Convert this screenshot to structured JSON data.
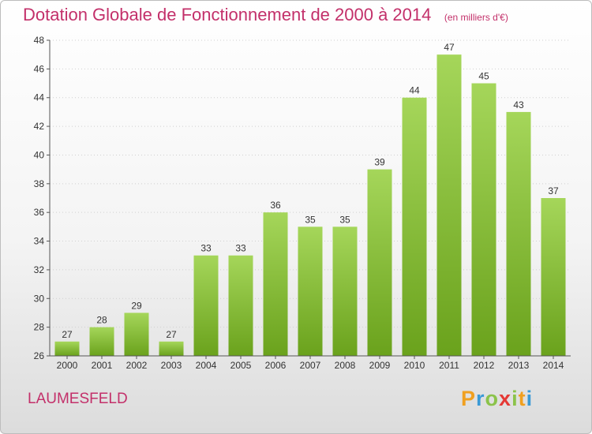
{
  "title": "Dotation Globale de Fonctionnement de 2000 à 2014",
  "subtitle": "(en milliers d'€)",
  "commune": "LAUMESFELD",
  "logo": {
    "letters": [
      "P",
      "r",
      "o",
      "x",
      "i",
      "t",
      "i"
    ],
    "colors": [
      "#f0a020",
      "#3a9ad6",
      "#8bc34a",
      "#e53935",
      "#8bc34a",
      "#f0a020",
      "#3a9ad6"
    ]
  },
  "colors": {
    "title": "#c3306a",
    "bar_light": "#a5d65a",
    "bar_dark": "#6aa21c",
    "axis": "#555555",
    "grid": "#d0d0d0"
  },
  "chart_data": {
    "type": "bar",
    "categories": [
      "2000",
      "2001",
      "2002",
      "2003",
      "2004",
      "2005",
      "2006",
      "2007",
      "2008",
      "2009",
      "2010",
      "2011",
      "2012",
      "2013",
      "2014"
    ],
    "values": [
      27,
      28,
      29,
      27,
      33,
      33,
      36,
      35,
      35,
      39,
      44,
      47,
      45,
      43,
      37
    ],
    "ylim": [
      26,
      48
    ],
    "yticks": [
      26,
      28,
      30,
      32,
      34,
      36,
      38,
      40,
      42,
      44,
      46,
      48
    ],
    "grid": "horizontal dotted",
    "title": "Dotation Globale de Fonctionnement de 2000 à 2014",
    "xlabel": "",
    "ylabel": ""
  }
}
